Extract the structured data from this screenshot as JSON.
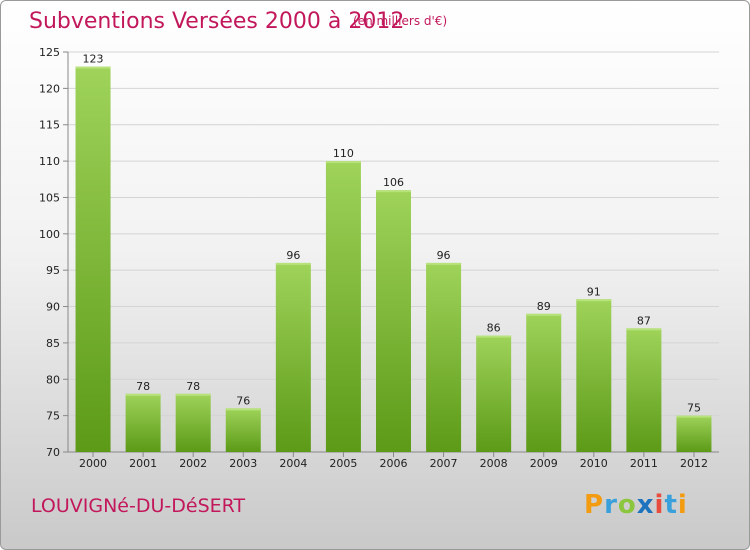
{
  "chart_data": {
    "type": "bar",
    "title": "Subventions Versées 2000 à 2012",
    "subtitle": "(en milliers d'€)",
    "categories": [
      "2000",
      "2001",
      "2002",
      "2003",
      "2004",
      "2005",
      "2006",
      "2007",
      "2008",
      "2009",
      "2010",
      "2011",
      "2012"
    ],
    "values": [
      123,
      78,
      78,
      76,
      96,
      110,
      106,
      96,
      86,
      89,
      91,
      87,
      75
    ],
    "ylim": [
      70,
      125
    ],
    "yticks": [
      70,
      75,
      80,
      85,
      90,
      95,
      100,
      105,
      110,
      115,
      120,
      125
    ],
    "grid": true,
    "colors": {
      "bar_top": "#9fd35a",
      "bar_bottom": "#5c9a17",
      "title": "#c2185b"
    }
  },
  "footer": {
    "commune": "LOUVIGNé-DU-DéSERT",
    "logo": {
      "p": "P",
      "r": "r",
      "o": "o",
      "x": "x",
      "i1": "i",
      "t": "t",
      "i2": "i"
    }
  }
}
